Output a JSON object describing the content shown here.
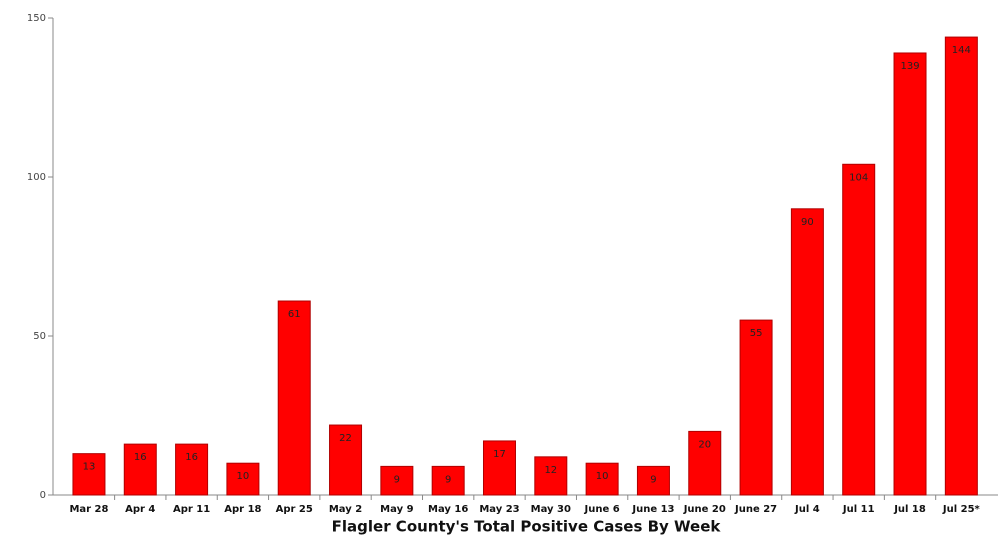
{
  "chart_data": {
    "type": "bar",
    "title": "Flagler County's Total Positive Cases By Week",
    "categories": [
      "Mar 28",
      "Apr 4",
      "Apr 11",
      "Apr 18",
      "Apr 25",
      "May 2",
      "May 9",
      "May 16",
      "May 23",
      "May 30",
      "June 6",
      "June 13",
      "June 20",
      "June 27",
      "Jul 4",
      "Jul 11",
      "Jul 18",
      "Jul 25*"
    ],
    "values": [
      13,
      16,
      16,
      10,
      61,
      22,
      9,
      9,
      17,
      12,
      10,
      9,
      20,
      55,
      90,
      104,
      139,
      144
    ],
    "color": "#ff0000",
    "ylim": [
      0,
      150
    ],
    "yticks": [
      0,
      50,
      100,
      150
    ],
    "grid": false
  }
}
